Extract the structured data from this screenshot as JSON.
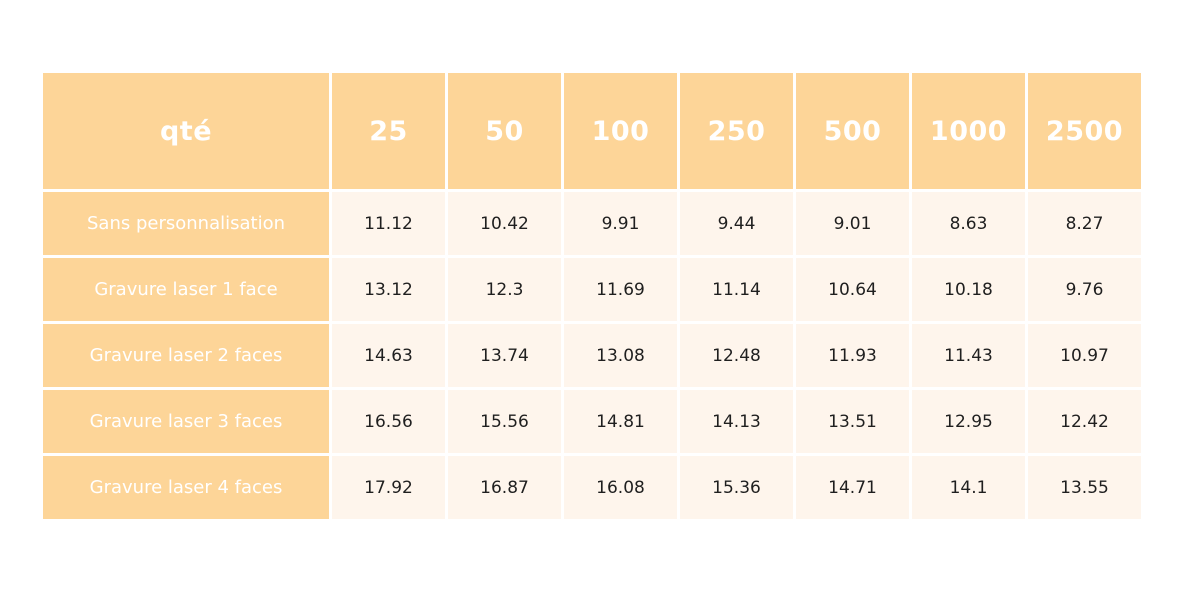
{
  "table": {
    "header": {
      "corner": "qté",
      "columns": [
        "25",
        "50",
        "100",
        "250",
        "500",
        "1000",
        "2500"
      ]
    },
    "rows": [
      {
        "label": "Sans personnalisation",
        "values": [
          "11.12",
          "10.42",
          "9.91",
          "9.44",
          "9.01",
          "8.63",
          "8.27"
        ]
      },
      {
        "label": "Gravure laser 1 face",
        "values": [
          "13.12",
          "12.3",
          "11.69",
          "11.14",
          "10.64",
          "10.18",
          "9.76"
        ]
      },
      {
        "label": "Gravure laser 2 faces",
        "values": [
          "14.63",
          "13.74",
          "13.08",
          "12.48",
          "11.93",
          "11.43",
          "10.97"
        ]
      },
      {
        "label": "Gravure laser 3 faces",
        "values": [
          "16.56",
          "15.56",
          "14.81",
          "14.13",
          "13.51",
          "12.95",
          "12.42"
        ]
      },
      {
        "label": "Gravure laser 4 faces",
        "values": [
          "17.92",
          "16.87",
          "16.08",
          "15.36",
          "14.71",
          "14.1",
          "13.55"
        ]
      }
    ]
  },
  "colors": {
    "header_bg": "#fdd598",
    "cell_bg": "#fef5ec",
    "header_text": "#ffffff",
    "value_text": "#1f1f1f"
  }
}
